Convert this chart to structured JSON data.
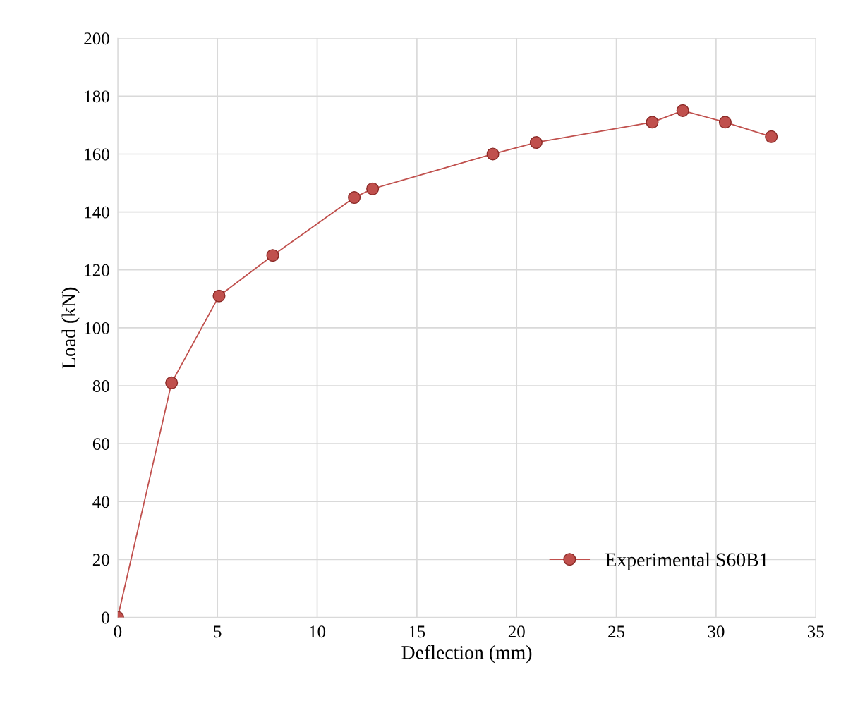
{
  "chart_data": {
    "type": "line",
    "xlabel": "Deflection (mm)",
    "ylabel": "Load (kN)",
    "x": [
      0,
      2.7,
      5.08,
      7.77,
      11.86,
      12.78,
      18.81,
      20.98,
      26.8,
      28.33,
      30.46,
      32.77
    ],
    "series": [
      {
        "name": "Experimental S60B1",
        "color": "#c0504d",
        "values": [
          0,
          81,
          111,
          125,
          145,
          148,
          160,
          164,
          171,
          175,
          171,
          166
        ]
      }
    ],
    "xlim": [
      0,
      35
    ],
    "xticks": [
      0,
      5,
      10,
      15,
      20,
      25,
      30,
      35
    ],
    "ylim": [
      0,
      200
    ],
    "yticks": [
      0,
      20,
      40,
      60,
      80,
      100,
      120,
      140,
      160,
      180,
      200
    ],
    "grid": true,
    "legend": "lower right",
    "marker": "circle",
    "line_style": "solid"
  }
}
